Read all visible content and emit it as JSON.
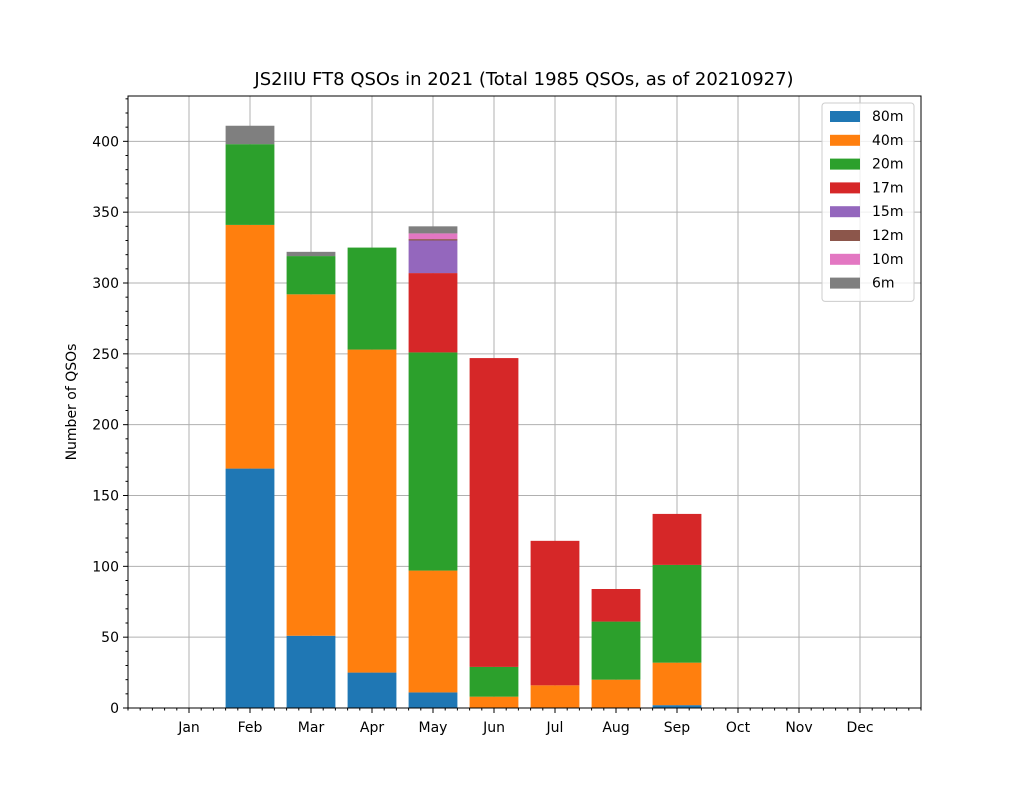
{
  "chart_data": {
    "type": "bar",
    "stacked": true,
    "title": "JS2IIU FT8 QSOs in 2021 (Total 1985 QSOs, as of 20210927)",
    "xlabel": "",
    "ylabel": "Number of QSOs",
    "categories": [
      "Jan",
      "Feb",
      "Mar",
      "Apr",
      "May",
      "Jun",
      "Jul",
      "Aug",
      "Sep",
      "Oct",
      "Nov",
      "Dec"
    ],
    "ylim": [
      0,
      432
    ],
    "yticks": [
      0,
      50,
      100,
      150,
      200,
      250,
      300,
      350,
      400
    ],
    "grid": true,
    "legend_position": "top-right",
    "series": [
      {
        "name": "80m",
        "color": "#1f77b4",
        "values": [
          0,
          169,
          51,
          25,
          11,
          0,
          0,
          0,
          2,
          0,
          0,
          0
        ]
      },
      {
        "name": "40m",
        "color": "#ff7f0e",
        "values": [
          0,
          172,
          241,
          228,
          86,
          8,
          16,
          20,
          30,
          0,
          0,
          0
        ]
      },
      {
        "name": "20m",
        "color": "#2ca02c",
        "values": [
          0,
          57,
          27,
          72,
          154,
          21,
          0,
          41,
          69,
          0,
          0,
          0
        ]
      },
      {
        "name": "17m",
        "color": "#d62728",
        "values": [
          0,
          0,
          0,
          0,
          56,
          218,
          102,
          23,
          36,
          0,
          0,
          0
        ]
      },
      {
        "name": "15m",
        "color": "#9467bd",
        "values": [
          0,
          0,
          0,
          0,
          23,
          0,
          0,
          0,
          0,
          0,
          0,
          0
        ]
      },
      {
        "name": "12m",
        "color": "#8c564b",
        "values": [
          0,
          0,
          0,
          0,
          1,
          0,
          0,
          0,
          0,
          0,
          0,
          0
        ]
      },
      {
        "name": "10m",
        "color": "#e377c2",
        "values": [
          0,
          0,
          0,
          0,
          4,
          0,
          0,
          0,
          0,
          0,
          0,
          0
        ]
      },
      {
        "name": "6m",
        "color": "#7f7f7f",
        "values": [
          0,
          13,
          3,
          0,
          5,
          0,
          0,
          0,
          0,
          0,
          0,
          0
        ]
      }
    ]
  }
}
